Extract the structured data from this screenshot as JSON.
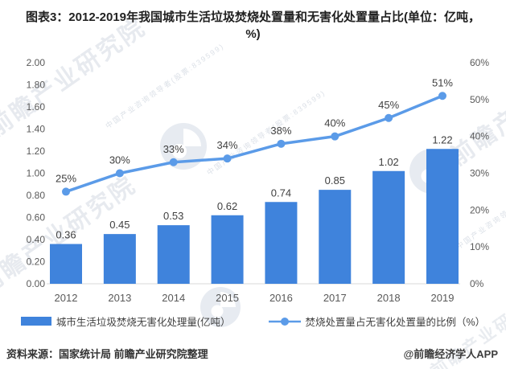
{
  "title": "图表3：2012-2019年我国城市生活垃圾焚烧处置量和无害化处置量占比(单位：亿吨，%)",
  "chart_data": {
    "type": "bar+line",
    "categories": [
      "2012",
      "2013",
      "2014",
      "2015",
      "2016",
      "2017",
      "2018",
      "2019"
    ],
    "series": [
      {
        "name": "城市生活垃圾焚烧无害化处理量(亿吨）",
        "type": "bar",
        "axis": "left",
        "color": "#3F83DC",
        "values": [
          0.36,
          0.45,
          0.53,
          0.62,
          0.74,
          0.85,
          1.02,
          1.22
        ],
        "labels": [
          "0.36",
          "0.45",
          "0.53",
          "0.62",
          "0.74",
          "0.85",
          "1.02",
          "1.22"
        ]
      },
      {
        "name": "焚烧处置量占无害化处置量的比例（%）",
        "type": "line",
        "axis": "right",
        "color": "#5B9BE8",
        "values": [
          25,
          30,
          33,
          34,
          38,
          40,
          45,
          51
        ],
        "labels": [
          "25%",
          "30%",
          "33%",
          "34%",
          "38%",
          "40%",
          "45%",
          "51%"
        ]
      }
    ],
    "left_axis": {
      "min": 0,
      "max": 2,
      "ticks": [
        "2.00",
        "1.80",
        "1.60",
        "1.40",
        "1.20",
        "1.00",
        "0.80",
        "0.60",
        "0.40",
        "0.20",
        "0.00"
      ]
    },
    "right_axis": {
      "min": 0,
      "max": 60,
      "ticks": [
        "60%",
        "50%",
        "40%",
        "30%",
        "20%",
        "10%",
        "0%"
      ]
    },
    "legend_position": "bottom",
    "grid": false
  },
  "footer": {
    "source": "资料来源：国家统计局 前瞻产业研究院整理",
    "credit": "@前瞻经济学人APP"
  },
  "watermark": {
    "text": "前瞻产业研究院",
    "sub_text": "中国产业咨询领导者(股票:839599)"
  }
}
